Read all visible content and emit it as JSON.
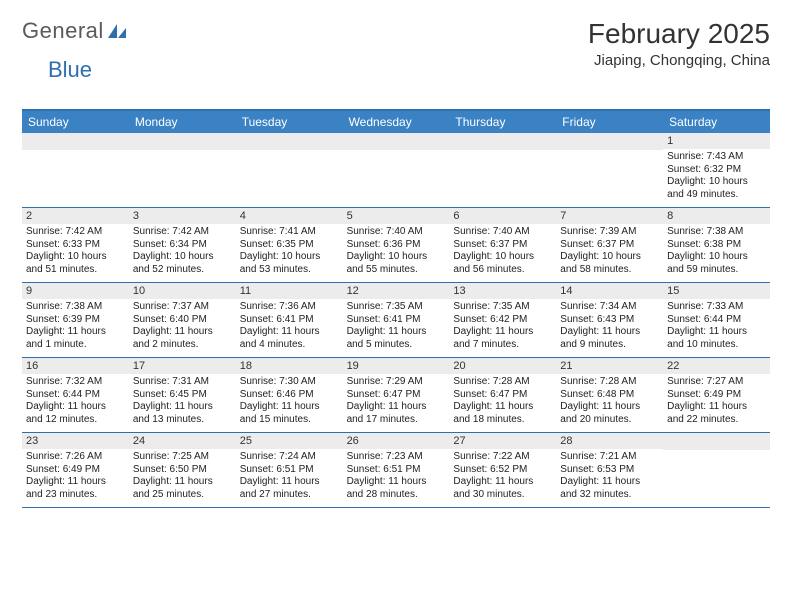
{
  "brand": {
    "part1": "General",
    "part2": "Blue"
  },
  "title": "February 2025",
  "location": "Jiaping, Chongqing, China",
  "colors": {
    "header_bg": "#3a82c4",
    "rule": "#2f6fae",
    "band_bg": "#ececec",
    "text": "#222222",
    "page_bg": "#ffffff"
  },
  "day_headers": [
    "Sunday",
    "Monday",
    "Tuesday",
    "Wednesday",
    "Thursday",
    "Friday",
    "Saturday"
  ],
  "weeks": [
    [
      null,
      null,
      null,
      null,
      null,
      null,
      {
        "n": "1",
        "sunrise": "7:43 AM",
        "sunset": "6:32 PM",
        "daylight": "10 hours and 49 minutes."
      }
    ],
    [
      {
        "n": "2",
        "sunrise": "7:42 AM",
        "sunset": "6:33 PM",
        "daylight": "10 hours and 51 minutes."
      },
      {
        "n": "3",
        "sunrise": "7:42 AM",
        "sunset": "6:34 PM",
        "daylight": "10 hours and 52 minutes."
      },
      {
        "n": "4",
        "sunrise": "7:41 AM",
        "sunset": "6:35 PM",
        "daylight": "10 hours and 53 minutes."
      },
      {
        "n": "5",
        "sunrise": "7:40 AM",
        "sunset": "6:36 PM",
        "daylight": "10 hours and 55 minutes."
      },
      {
        "n": "6",
        "sunrise": "7:40 AM",
        "sunset": "6:37 PM",
        "daylight": "10 hours and 56 minutes."
      },
      {
        "n": "7",
        "sunrise": "7:39 AM",
        "sunset": "6:37 PM",
        "daylight": "10 hours and 58 minutes."
      },
      {
        "n": "8",
        "sunrise": "7:38 AM",
        "sunset": "6:38 PM",
        "daylight": "10 hours and 59 minutes."
      }
    ],
    [
      {
        "n": "9",
        "sunrise": "7:38 AM",
        "sunset": "6:39 PM",
        "daylight": "11 hours and 1 minute."
      },
      {
        "n": "10",
        "sunrise": "7:37 AM",
        "sunset": "6:40 PM",
        "daylight": "11 hours and 2 minutes."
      },
      {
        "n": "11",
        "sunrise": "7:36 AM",
        "sunset": "6:41 PM",
        "daylight": "11 hours and 4 minutes."
      },
      {
        "n": "12",
        "sunrise": "7:35 AM",
        "sunset": "6:41 PM",
        "daylight": "11 hours and 5 minutes."
      },
      {
        "n": "13",
        "sunrise": "7:35 AM",
        "sunset": "6:42 PM",
        "daylight": "11 hours and 7 minutes."
      },
      {
        "n": "14",
        "sunrise": "7:34 AM",
        "sunset": "6:43 PM",
        "daylight": "11 hours and 9 minutes."
      },
      {
        "n": "15",
        "sunrise": "7:33 AM",
        "sunset": "6:44 PM",
        "daylight": "11 hours and 10 minutes."
      }
    ],
    [
      {
        "n": "16",
        "sunrise": "7:32 AM",
        "sunset": "6:44 PM",
        "daylight": "11 hours and 12 minutes."
      },
      {
        "n": "17",
        "sunrise": "7:31 AM",
        "sunset": "6:45 PM",
        "daylight": "11 hours and 13 minutes."
      },
      {
        "n": "18",
        "sunrise": "7:30 AM",
        "sunset": "6:46 PM",
        "daylight": "11 hours and 15 minutes."
      },
      {
        "n": "19",
        "sunrise": "7:29 AM",
        "sunset": "6:47 PM",
        "daylight": "11 hours and 17 minutes."
      },
      {
        "n": "20",
        "sunrise": "7:28 AM",
        "sunset": "6:47 PM",
        "daylight": "11 hours and 18 minutes."
      },
      {
        "n": "21",
        "sunrise": "7:28 AM",
        "sunset": "6:48 PM",
        "daylight": "11 hours and 20 minutes."
      },
      {
        "n": "22",
        "sunrise": "7:27 AM",
        "sunset": "6:49 PM",
        "daylight": "11 hours and 22 minutes."
      }
    ],
    [
      {
        "n": "23",
        "sunrise": "7:26 AM",
        "sunset": "6:49 PM",
        "daylight": "11 hours and 23 minutes."
      },
      {
        "n": "24",
        "sunrise": "7:25 AM",
        "sunset": "6:50 PM",
        "daylight": "11 hours and 25 minutes."
      },
      {
        "n": "25",
        "sunrise": "7:24 AM",
        "sunset": "6:51 PM",
        "daylight": "11 hours and 27 minutes."
      },
      {
        "n": "26",
        "sunrise": "7:23 AM",
        "sunset": "6:51 PM",
        "daylight": "11 hours and 28 minutes."
      },
      {
        "n": "27",
        "sunrise": "7:22 AM",
        "sunset": "6:52 PM",
        "daylight": "11 hours and 30 minutes."
      },
      {
        "n": "28",
        "sunrise": "7:21 AM",
        "sunset": "6:53 PM",
        "daylight": "11 hours and 32 minutes."
      },
      null
    ]
  ],
  "labels": {
    "sunrise": "Sunrise:",
    "sunset": "Sunset:",
    "daylight": "Daylight:"
  }
}
